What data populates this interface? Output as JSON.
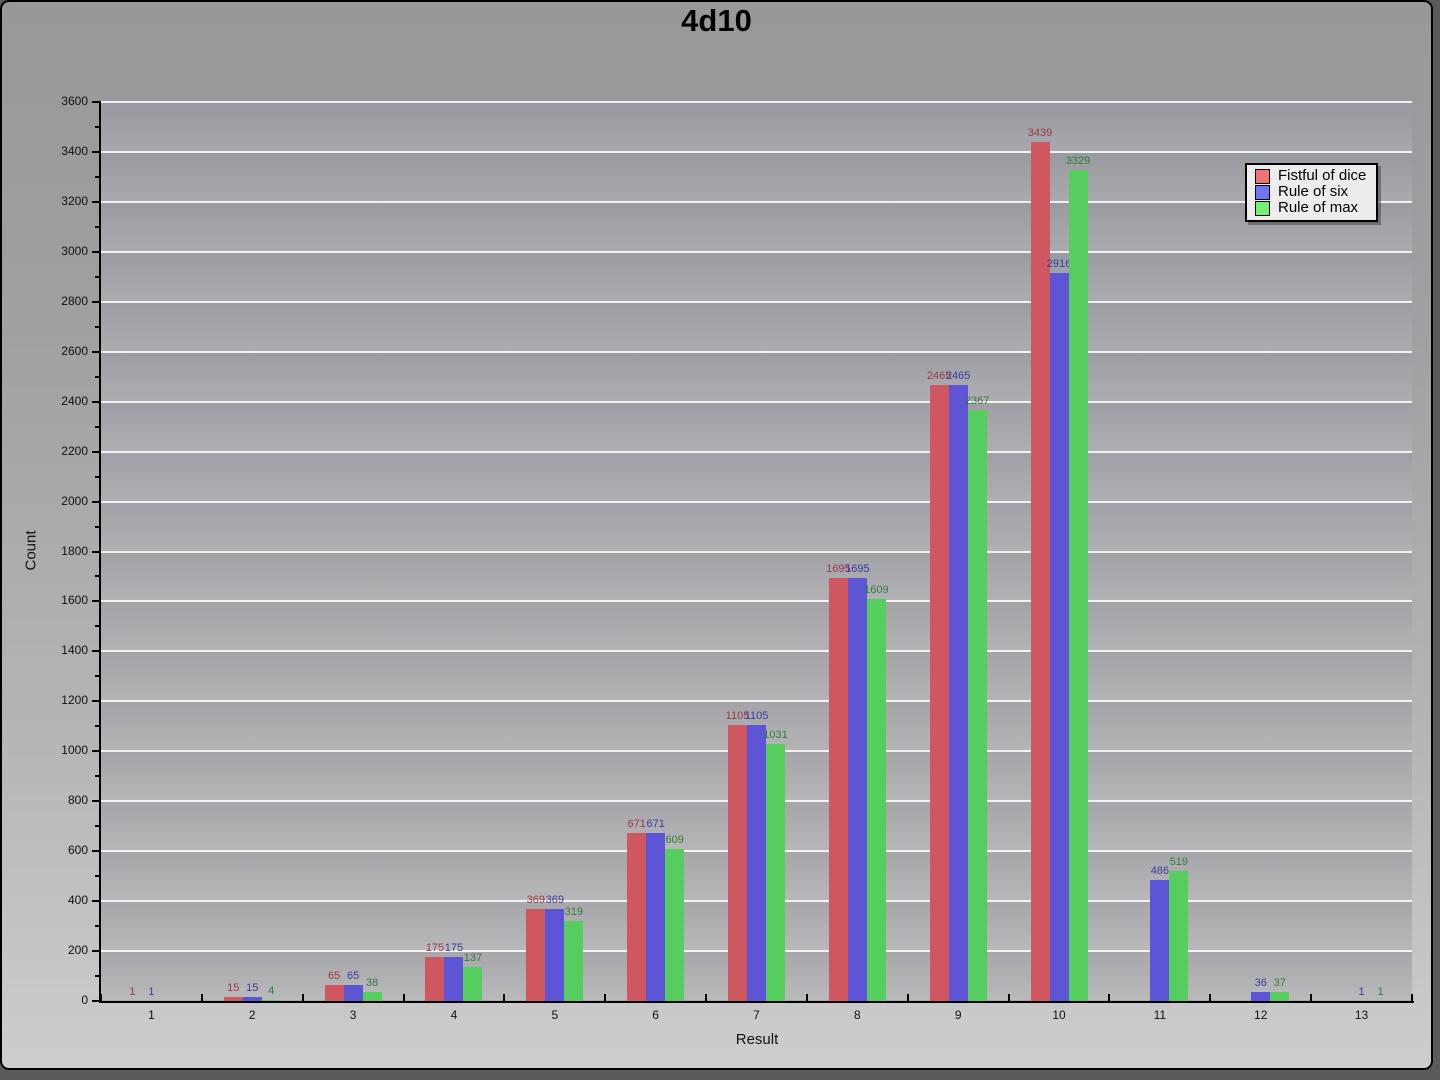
{
  "window": {
    "title": "4d10"
  },
  "chart_data": {
    "type": "bar",
    "title": "4d10",
    "xlabel": "Result",
    "ylabel": "Count",
    "categories": [
      "1",
      "2",
      "3",
      "4",
      "5",
      "6",
      "7",
      "8",
      "9",
      "10",
      "11",
      "12",
      "13"
    ],
    "ylim": [
      0,
      3600
    ],
    "ytick_step": 200,
    "ytick_minor_step": 100,
    "grid": true,
    "legend_position": "top-right",
    "plot_bg_color": "#a4a4a8",
    "gridline_color": "#ffffff",
    "series": [
      {
        "name": "Fistful of dice",
        "color": "#cf5860",
        "label_color": "#9c3840",
        "legend_swatch": "#f07474",
        "values": [
          1,
          15,
          65,
          175,
          369,
          671,
          1105,
          1695,
          2465,
          3439,
          null,
          null,
          null
        ]
      },
      {
        "name": "Rule of six",
        "color": "#5d55d6",
        "label_color": "#3a3a9e",
        "legend_swatch": "#7474f0",
        "values": [
          1,
          15,
          65,
          175,
          369,
          671,
          1105,
          1695,
          2465,
          2916,
          486,
          36,
          1
        ]
      },
      {
        "name": "Rule of max",
        "color": "#55ce5f",
        "label_color": "#2f7d38",
        "legend_swatch": "#74f074",
        "values": [
          null,
          4,
          38,
          137,
          319,
          609,
          1031,
          1609,
          2367,
          3329,
          519,
          37,
          1
        ]
      }
    ]
  }
}
